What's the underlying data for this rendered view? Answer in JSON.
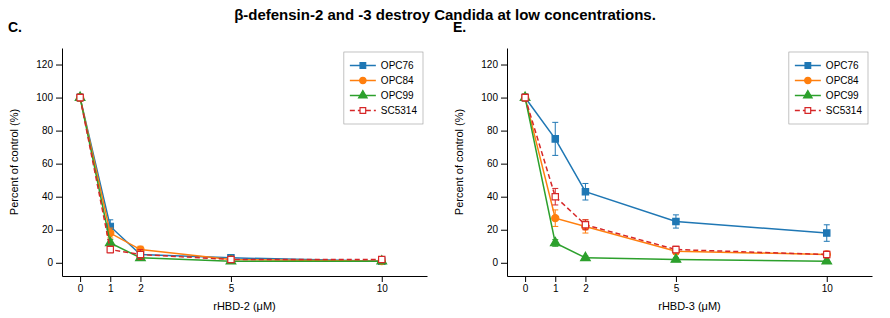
{
  "title": "β-defensin-2 and -3 destroy Candida at low concentrations.",
  "chart_data": [
    {
      "type": "line",
      "title": "C.",
      "xlabel": "rHBD-2 (μM)",
      "ylabel": "Percent of control (%)",
      "x": [
        0,
        1,
        2,
        5,
        10
      ],
      "xlim": [
        -0.6,
        11.5
      ],
      "ylim": [
        -8,
        130
      ],
      "xticks": [
        0,
        1,
        2,
        5,
        10
      ],
      "yticks": [
        0,
        20,
        40,
        60,
        80,
        100,
        120
      ],
      "legend": "upper right",
      "series": [
        {
          "name": "OPC76",
          "values": [
            100,
            22,
            5,
            3,
            1
          ],
          "yerr": [
            2,
            4,
            3,
            1.5,
            0.8
          ],
          "marker": "square",
          "line_style": "solid"
        },
        {
          "name": "OPC84",
          "values": [
            100,
            18,
            8,
            2,
            1
          ],
          "yerr": [
            2,
            3,
            2,
            1,
            0.5
          ],
          "marker": "circle",
          "line_style": "solid"
        },
        {
          "name": "OPC99",
          "values": [
            100,
            12,
            3,
            1,
            1
          ],
          "yerr": [
            2,
            2,
            1,
            0.8,
            0.5
          ],
          "marker": "triangle",
          "line_style": "solid"
        },
        {
          "name": "SC5314",
          "values": [
            100,
            8,
            5,
            2,
            2
          ],
          "yerr": [
            2,
            2,
            3,
            1.5,
            1
          ],
          "marker": "square-open",
          "line_style": "dashed"
        }
      ]
    },
    {
      "type": "line",
      "title": "E.",
      "xlabel": "rHBD-3 (μM)",
      "ylabel": "Percent of control (%)",
      "x": [
        0,
        1,
        2,
        5,
        10
      ],
      "xlim": [
        -0.6,
        11.5
      ],
      "ylim": [
        -8,
        130
      ],
      "xticks": [
        0,
        1,
        2,
        5,
        10
      ],
      "yticks": [
        0,
        20,
        40,
        60,
        80,
        100,
        120
      ],
      "legend": "upper right",
      "series": [
        {
          "name": "OPC76",
          "values": [
            100,
            75,
            43,
            25,
            18
          ],
          "yerr": [
            2,
            10,
            5,
            4,
            5
          ],
          "marker": "square",
          "line_style": "solid"
        },
        {
          "name": "OPC84",
          "values": [
            100,
            27,
            22,
            7,
            5
          ],
          "yerr": [
            2,
            5,
            4,
            2,
            1
          ],
          "marker": "circle",
          "line_style": "solid"
        },
        {
          "name": "OPC99",
          "values": [
            100,
            12,
            3,
            2,
            1
          ],
          "yerr": [
            2,
            2,
            1,
            1,
            0.5
          ],
          "marker": "triangle",
          "line_style": "solid"
        },
        {
          "name": "SC5314",
          "values": [
            100,
            40,
            23,
            8,
            5
          ],
          "yerr": [
            2,
            5,
            3,
            2,
            2
          ],
          "marker": "square-open",
          "line_style": "dashed"
        }
      ]
    }
  ]
}
